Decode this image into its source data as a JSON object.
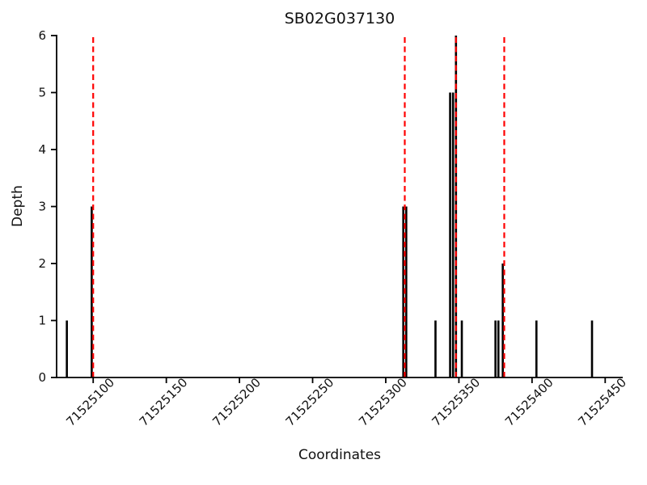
{
  "chart_data": {
    "type": "stem",
    "title": "SB02G037130",
    "xlabel": "Coordinates",
    "ylabel": "Depth",
    "xlim": [
      71525075,
      71525462
    ],
    "ylim": [
      0,
      6
    ],
    "x_ticks": [
      71525100,
      71525150,
      71525200,
      71525250,
      71525300,
      71525350,
      71525400,
      71525450
    ],
    "y_ticks": [
      0,
      1,
      2,
      3,
      4,
      5,
      6
    ],
    "legend": "none",
    "grid": "off",
    "colors": {
      "stem": "#000000",
      "marker_line": "#ff0000",
      "axis": "#000000",
      "text": "#111111"
    },
    "marker_lines_x": [
      71525100,
      71525313,
      71525348,
      71525381
    ],
    "stems": [
      {
        "x": 71525082,
        "depth": 1
      },
      {
        "x": 71525099,
        "depth": 3
      },
      {
        "x": 71525312,
        "depth": 3
      },
      {
        "x": 71525314,
        "depth": 3
      },
      {
        "x": 71525334,
        "depth": 1
      },
      {
        "x": 71525344,
        "depth": 5
      },
      {
        "x": 71525346,
        "depth": 5
      },
      {
        "x": 71525348,
        "depth": 6
      },
      {
        "x": 71525352,
        "depth": 1
      },
      {
        "x": 71525375,
        "depth": 1
      },
      {
        "x": 71525377,
        "depth": 1
      },
      {
        "x": 71525380,
        "depth": 2
      },
      {
        "x": 71525403,
        "depth": 1
      },
      {
        "x": 71525441,
        "depth": 1
      }
    ]
  }
}
